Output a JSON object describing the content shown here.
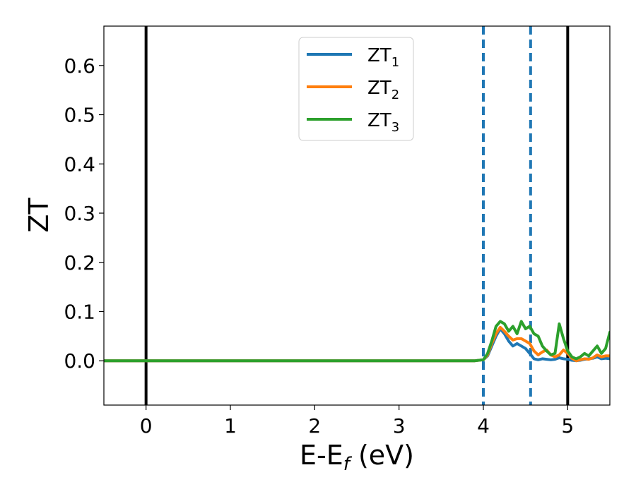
{
  "chart_data": {
    "type": "line",
    "xlabel": "E-E",
    "xlabel_sub": "f",
    "xlabel_suffix": " (eV)",
    "ylabel": "ZT",
    "xlim": [
      -0.5,
      5.5
    ],
    "ylim": [
      -0.09,
      0.68
    ],
    "x_ticks": [
      0,
      1,
      2,
      3,
      4,
      5
    ],
    "x_tick_labels": [
      "0",
      "1",
      "2",
      "3",
      "4",
      "5"
    ],
    "y_ticks": [
      0.0,
      0.1,
      0.2,
      0.3,
      0.4,
      0.5,
      0.6
    ],
    "y_tick_labels": [
      "0.0",
      "0.1",
      "0.2",
      "0.3",
      "0.4",
      "0.5",
      "0.6"
    ],
    "grid": false,
    "legend_position": "top-center",
    "vlines": [
      {
        "x": 0.0,
        "style": "solid",
        "color": "#000000"
      },
      {
        "x": 5.0,
        "style": "solid",
        "color": "#000000"
      },
      {
        "x": 4.0,
        "style": "dashed",
        "color": "#1f77b4"
      },
      {
        "x": 4.56,
        "style": "dashed",
        "color": "#1f77b4"
      }
    ],
    "series": [
      {
        "name": "ZT",
        "sub": "1",
        "color": "#1f77b4",
        "x": [
          -0.5,
          3.9,
          4.0,
          4.05,
          4.1,
          4.15,
          4.2,
          4.25,
          4.3,
          4.35,
          4.4,
          4.45,
          4.5,
          4.55,
          4.6,
          4.65,
          4.7,
          4.75,
          4.8,
          4.85,
          4.9,
          4.95,
          5.0,
          5.05,
          5.1,
          5.15,
          5.2,
          5.25,
          5.3,
          5.35,
          5.4,
          5.45,
          5.5
        ],
        "y": [
          0.0,
          0.0,
          0.002,
          0.01,
          0.03,
          0.05,
          0.065,
          0.055,
          0.04,
          0.03,
          0.035,
          0.03,
          0.025,
          0.015,
          0.004,
          0.002,
          0.004,
          0.003,
          0.002,
          0.003,
          0.006,
          0.004,
          0.003,
          0.001,
          0.0,
          0.001,
          0.003,
          0.004,
          0.005,
          0.008,
          0.004,
          0.005,
          0.004
        ]
      },
      {
        "name": "ZT",
        "sub": "2",
        "color": "#ff7f0e",
        "x": [
          -0.5,
          3.9,
          4.0,
          4.05,
          4.1,
          4.15,
          4.2,
          4.25,
          4.3,
          4.35,
          4.4,
          4.45,
          4.5,
          4.55,
          4.6,
          4.65,
          4.7,
          4.75,
          4.8,
          4.85,
          4.9,
          4.95,
          5.0,
          5.05,
          5.1,
          5.15,
          5.2,
          5.25,
          5.3,
          5.35,
          5.4,
          5.45,
          5.5
        ],
        "y": [
          0.0,
          0.0,
          0.002,
          0.012,
          0.035,
          0.055,
          0.068,
          0.06,
          0.05,
          0.042,
          0.045,
          0.045,
          0.04,
          0.035,
          0.02,
          0.012,
          0.018,
          0.022,
          0.012,
          0.008,
          0.012,
          0.022,
          0.015,
          0.005,
          0.0,
          0.002,
          0.004,
          0.003,
          0.006,
          0.012,
          0.008,
          0.01,
          0.01
        ]
      },
      {
        "name": "ZT",
        "sub": "3",
        "color": "#2ca02c",
        "x": [
          -0.5,
          3.9,
          4.0,
          4.05,
          4.1,
          4.15,
          4.2,
          4.25,
          4.3,
          4.35,
          4.4,
          4.45,
          4.5,
          4.55,
          4.6,
          4.65,
          4.7,
          4.75,
          4.8,
          4.85,
          4.9,
          4.95,
          5.0,
          5.05,
          5.1,
          5.15,
          5.2,
          5.25,
          5.3,
          5.35,
          5.4,
          5.45,
          5.5
        ],
        "y": [
          0.0,
          0.0,
          0.002,
          0.015,
          0.04,
          0.07,
          0.08,
          0.075,
          0.06,
          0.07,
          0.055,
          0.08,
          0.065,
          0.07,
          0.055,
          0.05,
          0.03,
          0.02,
          0.012,
          0.015,
          0.075,
          0.045,
          0.02,
          0.008,
          0.004,
          0.008,
          0.015,
          0.01,
          0.02,
          0.03,
          0.015,
          0.025,
          0.058
        ]
      }
    ]
  }
}
